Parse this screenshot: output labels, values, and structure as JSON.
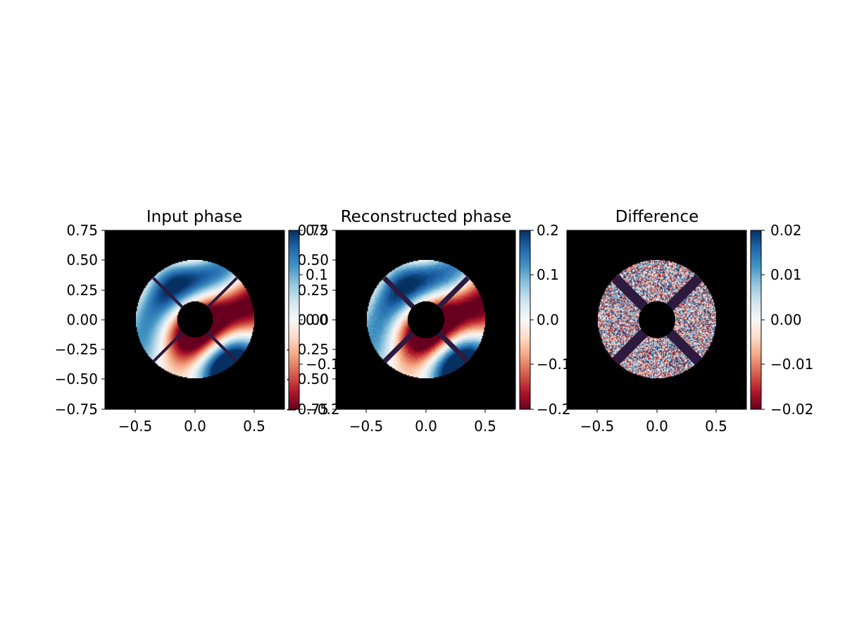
{
  "chart_data": [
    {
      "type": "heatmap",
      "title": "Input phase",
      "xlim": [
        -0.75,
        0.75
      ],
      "ylim": [
        -0.75,
        0.75
      ],
      "xticks": [
        "−0.5",
        "0.0",
        "0.5"
      ],
      "yticks": [
        "0.75",
        "0.50",
        "0.25",
        "0.00",
        "−0.25",
        "−0.50",
        "−0.75"
      ],
      "colorbar": {
        "cmap": "RdBu",
        "range": [
          -0.2,
          0.2
        ],
        "ticks": [
          "0.2",
          "0.1",
          "0.0",
          "−0.1",
          "−0.2"
        ]
      },
      "mask": {
        "outer_radius": 0.5,
        "inner_radius": 0.15,
        "spider_count": 4,
        "spider_angles_deg": [
          45,
          135,
          225,
          315
        ]
      }
    },
    {
      "type": "heatmap",
      "title": "Reconstructed phase",
      "xlim": [
        -0.75,
        0.75
      ],
      "ylim": [
        -0.75,
        0.75
      ],
      "xticks": [
        "−0.5",
        "0.0",
        "0.5"
      ],
      "yticks": [
        "0.75",
        "0.50",
        "0.25",
        "0.00",
        "−0.25",
        "−0.50",
        "−0.75"
      ],
      "colorbar": {
        "cmap": "RdBu",
        "range": [
          -0.2,
          0.2
        ],
        "ticks": [
          "0.2",
          "0.1",
          "0.0",
          "−0.1",
          "−0.2"
        ]
      },
      "mask": {
        "outer_radius": 0.5,
        "inner_radius": 0.15,
        "spider_count": 4,
        "spider_angles_deg": [
          45,
          135,
          225,
          315
        ]
      }
    },
    {
      "type": "heatmap",
      "title": "Difference",
      "xlim": [
        -0.75,
        0.75
      ],
      "ylim": [
        -0.75,
        0.75
      ],
      "xticks": [
        "−0.5",
        "0.0",
        "0.5"
      ],
      "yticks": [],
      "colorbar": {
        "cmap": "RdBu",
        "range": [
          -0.02,
          0.02
        ],
        "ticks": [
          "0.02",
          "0.01",
          "0.00",
          "−0.01",
          "−0.02"
        ]
      },
      "mask": {
        "outer_radius": 0.5,
        "inner_radius": 0.15,
        "spider_count": 4,
        "spider_angles_deg": [
          45,
          135,
          225,
          315
        ]
      }
    }
  ],
  "colors": {
    "background": "#000000",
    "spider": "#2d1a3e",
    "cmap_stops": [
      "#67001f",
      "#b2182b",
      "#d6604d",
      "#f4a582",
      "#fddbc7",
      "#f7f7f7",
      "#d1e5f0",
      "#92c5de",
      "#4393c3",
      "#2166ac",
      "#053061"
    ]
  }
}
